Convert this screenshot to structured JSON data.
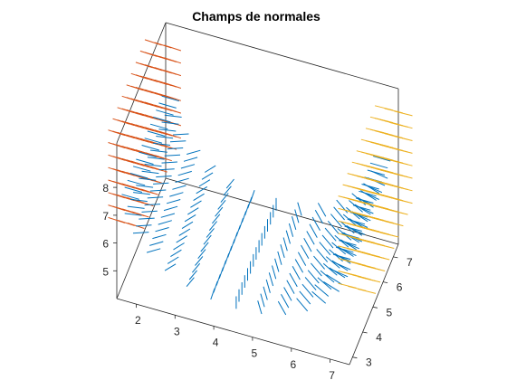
{
  "chart_data": {
    "type": "quiver3d",
    "title": "Champs de normales",
    "xlabel": "",
    "ylabel": "",
    "zlabel": "",
    "grid": false,
    "box": true,
    "x_ticks": [
      2,
      3,
      4,
      5,
      6,
      7
    ],
    "y_ticks": [
      3,
      4,
      5,
      6,
      7
    ],
    "z_ticks": [
      5,
      6,
      7,
      8
    ],
    "xlim": [
      1.5,
      7.5
    ],
    "ylim": [
      2.7,
      7.5
    ],
    "zlim": [
      4.0,
      9.6
    ],
    "series": [
      {
        "color": "#D95319",
        "surface": "left-wall",
        "x_range": [
          1.5,
          2.0
        ],
        "y_range": [
          3.5,
          7.2
        ],
        "z_range": [
          6.0,
          9.5
        ],
        "normal_direction": "-x"
      },
      {
        "color": "#0072BD",
        "surface": "half-cylinder-bottom",
        "center": [
          4.5,
          5.0,
          7.5
        ],
        "radius": 2.5,
        "y_range": [
          3.0,
          7.0
        ],
        "normal_direction": "outward"
      },
      {
        "color": "#EDB120",
        "surface": "right-wall",
        "x_range": [
          7.0,
          7.5
        ],
        "y_range": [
          3.5,
          7.2
        ],
        "z_range": [
          6.0,
          9.5
        ],
        "normal_direction": "+x"
      }
    ]
  }
}
